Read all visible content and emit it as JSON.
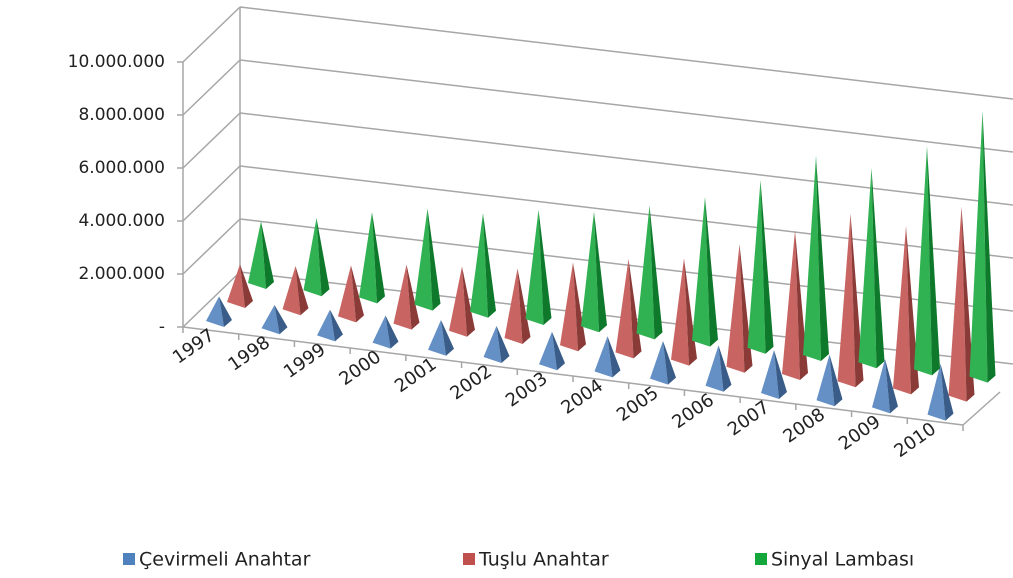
{
  "chart_data": {
    "type": "pyramid3d",
    "categories": [
      "1997",
      "1998",
      "1999",
      "2000",
      "2001",
      "2002",
      "2003",
      "2004",
      "2005",
      "2006",
      "2007",
      "2008",
      "2009",
      "2010"
    ],
    "series": [
      {
        "name": "Çevirmeli Anahtar",
        "color": "#4f81bd",
        "values": [
          1000000,
          950000,
          1050000,
          1100000,
          1200000,
          1250000,
          1300000,
          1400000,
          1500000,
          1600000,
          1700000,
          1800000,
          1900000,
          2000000
        ]
      },
      {
        "name": "Tuşlu Anahtar",
        "color": "#c0504d",
        "values": [
          1500000,
          1700000,
          2000000,
          2300000,
          2500000,
          2700000,
          3200000,
          3600000,
          3900000,
          4700000,
          5500000,
          6400000,
          6200000,
          7200000
        ]
      },
      {
        "name": "Sinyal Lambası",
        "color": "#14a83c",
        "values": [
          2400000,
          2800000,
          3300000,
          3700000,
          3800000,
          4200000,
          4400000,
          4900000,
          5500000,
          6400000,
          7600000,
          7400000,
          8500000,
          10100000
        ]
      }
    ],
    "ylim": [
      0,
      10000000
    ],
    "yticks": [
      {
        "value": 0,
        "label": "-"
      },
      {
        "value": 2000000,
        "label": "2.000.000"
      },
      {
        "value": 4000000,
        "label": "4.000.000"
      },
      {
        "value": 6000000,
        "label": "6.000.000"
      },
      {
        "value": 8000000,
        "label": "8.000.000"
      },
      {
        "value": 10000000,
        "label": "10.000.000"
      }
    ],
    "grid": true,
    "legend": "bottom"
  }
}
